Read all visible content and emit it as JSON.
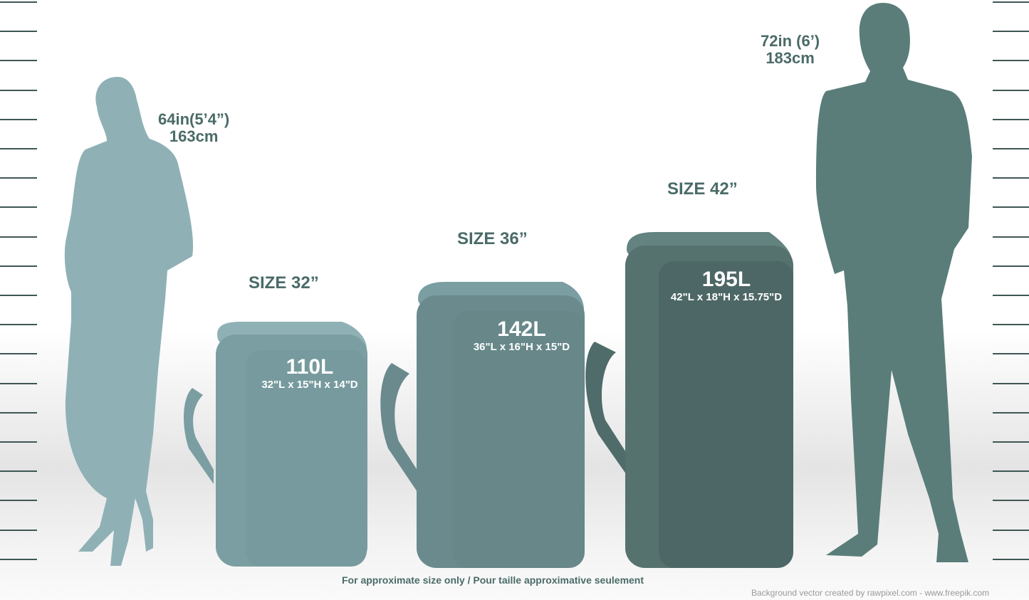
{
  "colors": {
    "woman": "#8fb1b6",
    "bag_32": "#7a9ea2",
    "bag_36": "#6a8a8d",
    "bag_42": "#4f6b6a",
    "man": "#5a7d79",
    "text": "#4a6b68"
  },
  "woman": {
    "height_in": "64in(5’4”)",
    "height_cm": "163cm"
  },
  "man": {
    "height_in": "72in (6’)",
    "height_cm": "183cm"
  },
  "bags": [
    {
      "size": "SIZE 32”",
      "volume": "110L",
      "dims": "32\"L x 15\"H x 14\"D"
    },
    {
      "size": "SIZE 36”",
      "volume": "142L",
      "dims": "36\"L x 16\"H x 15\"D"
    },
    {
      "size": "SIZE 42”",
      "volume": "195L",
      "dims": "42\"L x 18\"H x 15.75\"D"
    }
  ],
  "note": "For approximate size only / Pour taille approximative seulement",
  "credit": "Background vector created by rawpixel.com - www.freepik.com"
}
